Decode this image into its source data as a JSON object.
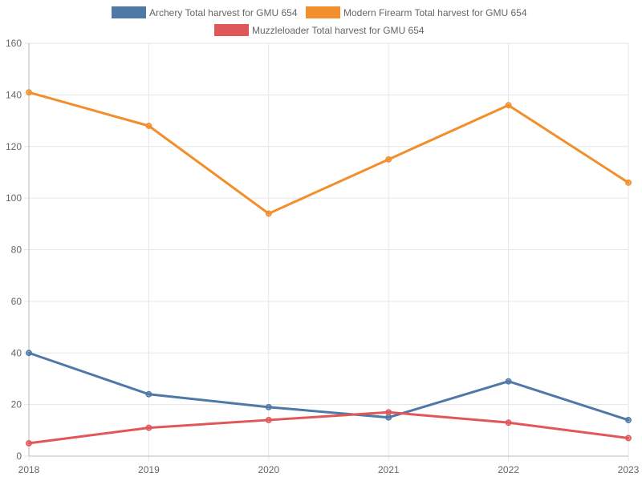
{
  "chart_data": {
    "type": "line",
    "x": [
      "2018",
      "2019",
      "2020",
      "2021",
      "2022",
      "2023"
    ],
    "ylim": [
      0,
      160
    ],
    "yticks": [
      "0",
      "20",
      "40",
      "60",
      "80",
      "100",
      "120",
      "140",
      "160"
    ],
    "grid": true,
    "legend_position": "top-center",
    "series": [
      {
        "name": "Archery Total harvest for GMU 654",
        "color": "#4e79a7",
        "values": [
          40,
          24,
          19,
          15,
          29,
          14
        ]
      },
      {
        "name": "Modern Firearm Total harvest for GMU 654",
        "color": "#f28e2b",
        "values": [
          141,
          128,
          94,
          115,
          136,
          106
        ]
      },
      {
        "name": "Muzzleloader Total harvest for GMU 654",
        "color": "#e15759",
        "values": [
          5,
          11,
          14,
          17,
          13,
          7
        ]
      }
    ]
  }
}
